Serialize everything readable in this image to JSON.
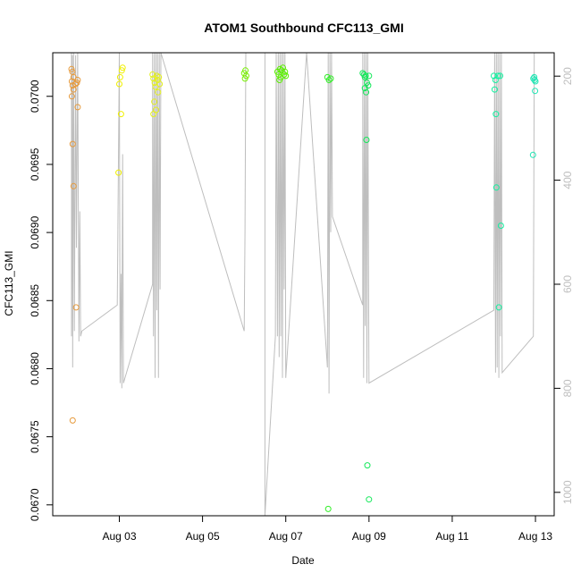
{
  "chart_data": {
    "type": "scatter",
    "title": "ATOM1 Southbound CFC113_GMI",
    "xlabel": "Date",
    "ylabel": "CFC113_GMI",
    "x_ticks": [
      "Aug 03",
      "Aug 05",
      "Aug 07",
      "Aug 09",
      "Aug 11",
      "Aug 13"
    ],
    "x_tick_values": [
      3,
      5,
      7,
      9,
      11,
      13
    ],
    "xlim": [
      1.4,
      13.45
    ],
    "y_ticks": [
      "0.0670",
      "0.0675",
      "0.0680",
      "0.0685",
      "0.0690",
      "0.0695",
      "0.0700"
    ],
    "y_tick_values": [
      0.067,
      0.0675,
      0.068,
      0.0685,
      0.069,
      0.0695,
      0.07
    ],
    "ylim": [
      0.06692,
      0.07032
    ],
    "y2_ticks": [
      "200",
      "400",
      "600",
      "800",
      "1000"
    ],
    "y2_tick_values": [
      200,
      400,
      600,
      800,
      1000
    ],
    "y2lim": [
      1045,
      155
    ],
    "colors": {
      "line": "#bebebe",
      "points": [
        "#e69a3c",
        "#f0f000",
        "#e4f01e",
        "#78f000",
        "#5af000",
        "#32ee28",
        "#14e85a",
        "#14f0a0",
        "#1ee6b4"
      ]
    },
    "points": [
      {
        "x": 1.85,
        "y": 0.0702,
        "c": 0
      },
      {
        "x": 1.87,
        "y": 0.07018,
        "c": 0
      },
      {
        "x": 1.9,
        "y": 0.07014,
        "c": 0
      },
      {
        "x": 1.86,
        "y": 0.07011,
        "c": 0
      },
      {
        "x": 1.88,
        "y": 0.07008,
        "c": 0
      },
      {
        "x": 1.9,
        "y": 0.07005,
        "c": 0
      },
      {
        "x": 1.86,
        "y": 0.07,
        "c": 0
      },
      {
        "x": 1.98,
        "y": 0.0701,
        "c": 0
      },
      {
        "x": 2.0,
        "y": 0.07012,
        "c": 0
      },
      {
        "x": 1.95,
        "y": 0.07009,
        "c": 0
      },
      {
        "x": 2.0,
        "y": 0.06992,
        "c": 0
      },
      {
        "x": 1.88,
        "y": 0.06965,
        "c": 0
      },
      {
        "x": 1.9,
        "y": 0.06934,
        "c": 0
      },
      {
        "x": 1.96,
        "y": 0.06845,
        "c": 0
      },
      {
        "x": 1.88,
        "y": 0.06762,
        "c": 0
      },
      {
        "x": 3.0,
        "y": 0.07009,
        "c": 1
      },
      {
        "x": 3.02,
        "y": 0.07014,
        "c": 1
      },
      {
        "x": 3.06,
        "y": 0.07019,
        "c": 1
      },
      {
        "x": 3.08,
        "y": 0.07021,
        "c": 1
      },
      {
        "x": 3.04,
        "y": 0.06987,
        "c": 1
      },
      {
        "x": 2.98,
        "y": 0.06944,
        "c": 1
      },
      {
        "x": 3.8,
        "y": 0.07016,
        "c": 2
      },
      {
        "x": 3.82,
        "y": 0.07013,
        "c": 2
      },
      {
        "x": 3.85,
        "y": 0.0701,
        "c": 2
      },
      {
        "x": 3.87,
        "y": 0.07007,
        "c": 2
      },
      {
        "x": 3.9,
        "y": 0.07015,
        "c": 2
      },
      {
        "x": 3.92,
        "y": 0.07012,
        "c": 2
      },
      {
        "x": 3.95,
        "y": 0.07014,
        "c": 2
      },
      {
        "x": 3.97,
        "y": 0.07009,
        "c": 2
      },
      {
        "x": 3.84,
        "y": 0.06996,
        "c": 2
      },
      {
        "x": 3.88,
        "y": 0.0699,
        "c": 2
      },
      {
        "x": 3.82,
        "y": 0.06987,
        "c": 2
      },
      {
        "x": 3.93,
        "y": 0.07003,
        "c": 2
      },
      {
        "x": 6.0,
        "y": 0.07017,
        "c": 3
      },
      {
        "x": 6.03,
        "y": 0.07019,
        "c": 3
      },
      {
        "x": 6.05,
        "y": 0.07015,
        "c": 3
      },
      {
        "x": 6.02,
        "y": 0.07013,
        "c": 3
      },
      {
        "x": 6.8,
        "y": 0.07018,
        "c": 4
      },
      {
        "x": 6.83,
        "y": 0.07016,
        "c": 4
      },
      {
        "x": 6.86,
        "y": 0.0702,
        "c": 4
      },
      {
        "x": 6.88,
        "y": 0.07014,
        "c": 4
      },
      {
        "x": 6.9,
        "y": 0.07019,
        "c": 4
      },
      {
        "x": 6.93,
        "y": 0.07021,
        "c": 4
      },
      {
        "x": 6.96,
        "y": 0.07016,
        "c": 4
      },
      {
        "x": 6.98,
        "y": 0.07018,
        "c": 4
      },
      {
        "x": 6.85,
        "y": 0.07012,
        "c": 4
      },
      {
        "x": 7.0,
        "y": 0.07015,
        "c": 4
      },
      {
        "x": 8.0,
        "y": 0.07014,
        "c": 5
      },
      {
        "x": 8.04,
        "y": 0.07012,
        "c": 5
      },
      {
        "x": 8.08,
        "y": 0.07013,
        "c": 5
      },
      {
        "x": 8.02,
        "y": 0.06697,
        "c": 5
      },
      {
        "x": 8.85,
        "y": 0.07017,
        "c": 6
      },
      {
        "x": 8.88,
        "y": 0.07016,
        "c": 6
      },
      {
        "x": 8.9,
        "y": 0.07014,
        "c": 6
      },
      {
        "x": 8.92,
        "y": 0.07015,
        "c": 6
      },
      {
        "x": 8.95,
        "y": 0.0701,
        "c": 6
      },
      {
        "x": 8.9,
        "y": 0.07006,
        "c": 6
      },
      {
        "x": 8.93,
        "y": 0.07003,
        "c": 6
      },
      {
        "x": 8.98,
        "y": 0.07008,
        "c": 6
      },
      {
        "x": 9.0,
        "y": 0.07015,
        "c": 6
      },
      {
        "x": 8.94,
        "y": 0.06968,
        "c": 6
      },
      {
        "x": 8.96,
        "y": 0.06729,
        "c": 6
      },
      {
        "x": 9.0,
        "y": 0.06704,
        "c": 6
      },
      {
        "x": 12.0,
        "y": 0.07015,
        "c": 7
      },
      {
        "x": 12.04,
        "y": 0.07012,
        "c": 7
      },
      {
        "x": 12.1,
        "y": 0.07015,
        "c": 7
      },
      {
        "x": 12.15,
        "y": 0.07015,
        "c": 7
      },
      {
        "x": 12.02,
        "y": 0.07005,
        "c": 7
      },
      {
        "x": 12.05,
        "y": 0.06987,
        "c": 7
      },
      {
        "x": 12.06,
        "y": 0.06933,
        "c": 7
      },
      {
        "x": 12.17,
        "y": 0.06905,
        "c": 7
      },
      {
        "x": 12.12,
        "y": 0.06845,
        "c": 7
      },
      {
        "x": 12.95,
        "y": 0.07013,
        "c": 8
      },
      {
        "x": 12.98,
        "y": 0.07012,
        "c": 8
      },
      {
        "x": 13.0,
        "y": 0.07011,
        "c": 8
      },
      {
        "x": 12.97,
        "y": 0.07014,
        "c": 8
      },
      {
        "x": 12.99,
        "y": 0.07004,
        "c": 8
      },
      {
        "x": 12.94,
        "y": 0.06957,
        "c": 8
      }
    ],
    "line": [
      [
        1.85,
        155
      ],
      [
        1.85,
        700
      ],
      [
        1.87,
        160
      ],
      [
        1.88,
        760
      ],
      [
        1.9,
        155
      ],
      [
        1.92,
        690
      ],
      [
        1.95,
        160
      ],
      [
        1.97,
        530
      ],
      [
        2.0,
        155
      ],
      [
        2.03,
        710
      ],
      [
        2.05,
        460
      ],
      [
        2.07,
        700
      ],
      [
        2.1,
        690
      ],
      [
        2.95,
        640
      ],
      [
        3.0,
        155
      ],
      [
        3.02,
        790
      ],
      [
        3.04,
        580
      ],
      [
        3.06,
        800
      ],
      [
        3.08,
        350
      ],
      [
        3.1,
        790
      ],
      [
        3.8,
        600
      ],
      [
        3.8,
        155
      ],
      [
        3.82,
        700
      ],
      [
        3.84,
        155
      ],
      [
        3.86,
        780
      ],
      [
        3.88,
        155
      ],
      [
        3.9,
        650
      ],
      [
        3.92,
        155
      ],
      [
        3.94,
        780
      ],
      [
        3.96,
        155
      ],
      [
        3.98,
        610
      ],
      [
        4.0,
        155
      ],
      [
        6.0,
        690
      ],
      [
        6.02,
        500
      ],
      [
        6.04,
        155
      ],
      [
        6.5,
        155
      ],
      [
        6.5,
        1045
      ],
      [
        6.75,
        700
      ],
      [
        6.77,
        155
      ],
      [
        6.8,
        700
      ],
      [
        6.82,
        155
      ],
      [
        6.84,
        740
      ],
      [
        6.86,
        155
      ],
      [
        6.88,
        700
      ],
      [
        6.9,
        155
      ],
      [
        6.92,
        780
      ],
      [
        6.94,
        155
      ],
      [
        6.96,
        610
      ],
      [
        6.98,
        155
      ],
      [
        7.0,
        780
      ],
      [
        7.5,
        155
      ],
      [
        8.0,
        760
      ],
      [
        8.02,
        155
      ],
      [
        8.04,
        810
      ],
      [
        8.06,
        155
      ],
      [
        8.08,
        500
      ],
      [
        8.1,
        155
      ],
      [
        8.12,
        470
      ],
      [
        8.85,
        640
      ],
      [
        8.85,
        155
      ],
      [
        8.87,
        780
      ],
      [
        8.89,
        155
      ],
      [
        8.91,
        680
      ],
      [
        8.93,
        155
      ],
      [
        8.95,
        790
      ],
      [
        8.97,
        155
      ],
      [
        9.0,
        790
      ],
      [
        12.0,
        650
      ],
      [
        12.02,
        155
      ],
      [
        12.04,
        770
      ],
      [
        12.06,
        155
      ],
      [
        12.08,
        760
      ],
      [
        12.1,
        155
      ],
      [
        12.12,
        780
      ],
      [
        12.14,
        155
      ],
      [
        12.16,
        700
      ],
      [
        12.18,
        155
      ],
      [
        12.2,
        770
      ],
      [
        12.95,
        700
      ],
      [
        12.97,
        155
      ],
      [
        13.0,
        155
      ]
    ]
  }
}
